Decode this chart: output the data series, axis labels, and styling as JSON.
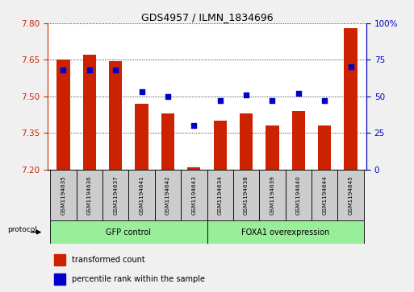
{
  "title": "GDS4957 / ILMN_1834696",
  "samples": [
    "GSM1194635",
    "GSM1194636",
    "GSM1194637",
    "GSM1194641",
    "GSM1194642",
    "GSM1194643",
    "GSM1194634",
    "GSM1194638",
    "GSM1194639",
    "GSM1194640",
    "GSM1194644",
    "GSM1194645"
  ],
  "bar_values": [
    7.65,
    7.67,
    7.645,
    7.47,
    7.43,
    7.21,
    7.4,
    7.43,
    7.38,
    7.44,
    7.38,
    7.78
  ],
  "bar_base": 7.2,
  "percentile_values": [
    68,
    68,
    68,
    53,
    50,
    30,
    47,
    51,
    47,
    52,
    47,
    70
  ],
  "ylim_left": [
    7.2,
    7.8
  ],
  "ylim_right": [
    0,
    100
  ],
  "yticks_left": [
    7.2,
    7.35,
    7.5,
    7.65,
    7.8
  ],
  "yticks_right": [
    0,
    25,
    50,
    75,
    100
  ],
  "ytick_labels_right": [
    "0",
    "25",
    "50",
    "75",
    "100%"
  ],
  "bar_color": "#cc2200",
  "dot_color": "#0000cc",
  "group1_label": "GFP control",
  "group2_label": "FOXA1 overexpression",
  "group_color": "#99ee99",
  "protocol_label": "protocol",
  "legend_bar_label": "transformed count",
  "legend_dot_label": "percentile rank within the sample",
  "plot_bg_color": "#ffffff",
  "fig_bg_color": "#f0f0f0",
  "n_group1": 6,
  "n_group2": 6
}
